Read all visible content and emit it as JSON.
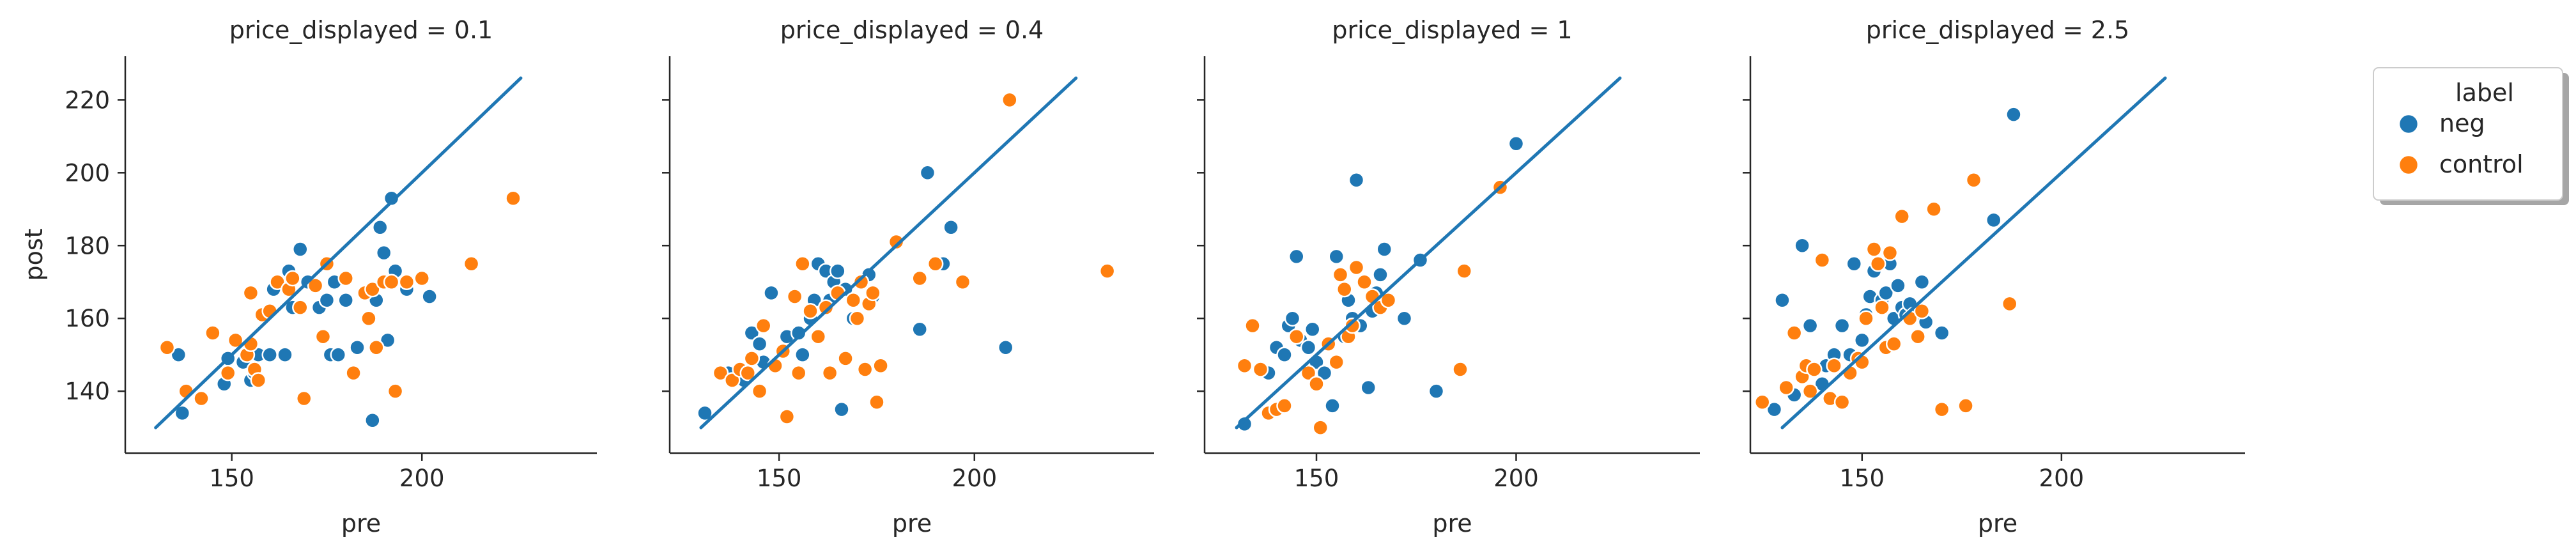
{
  "chart_data": {
    "type": "scatter",
    "xlabel": "pre",
    "ylabel": "post",
    "xlim": [
      122,
      246
    ],
    "ylim": [
      123,
      232
    ],
    "xticks": [
      150,
      200
    ],
    "yticks": [
      140,
      160,
      180,
      200,
      220
    ],
    "reference_line": {
      "x": [
        130,
        226
      ],
      "y": [
        130,
        226
      ]
    },
    "colors": {
      "neg": "#1f77b4",
      "control": "#ff7f0e",
      "line": "#1f77b4"
    },
    "legend": {
      "title": "label",
      "entries": [
        "neg",
        "control"
      ],
      "position": "right"
    },
    "panels": [
      {
        "title": "price_displayed = 0.1",
        "series": [
          {
            "name": "neg",
            "points": [
              [
                136,
                150
              ],
              [
                137,
                134
              ],
              [
                148,
                142
              ],
              [
                149,
                149
              ],
              [
                153,
                148
              ],
              [
                155,
                143
              ],
              [
                156,
                145
              ],
              [
                157,
                150
              ],
              [
                160,
                150
              ],
              [
                161,
                168
              ],
              [
                164,
                150
              ],
              [
                165,
                173
              ],
              [
                166,
                163
              ],
              [
                168,
                179
              ],
              [
                170,
                170
              ],
              [
                173,
                163
              ],
              [
                175,
                165
              ],
              [
                176,
                150
              ],
              [
                177,
                170
              ],
              [
                178,
                150
              ],
              [
                180,
                165
              ],
              [
                183,
                152
              ],
              [
                186,
                167
              ],
              [
                187,
                132
              ],
              [
                188,
                165
              ],
              [
                189,
                185
              ],
              [
                190,
                178
              ],
              [
                191,
                154
              ],
              [
                192,
                193
              ],
              [
                193,
                173
              ],
              [
                196,
                168
              ],
              [
                202,
                166
              ]
            ]
          },
          {
            "name": "control",
            "points": [
              [
                133,
                152
              ],
              [
                138,
                140
              ],
              [
                142,
                138
              ],
              [
                145,
                156
              ],
              [
                149,
                145
              ],
              [
                151,
                154
              ],
              [
                154,
                150
              ],
              [
                155,
                167
              ],
              [
                155,
                153
              ],
              [
                156,
                146
              ],
              [
                157,
                143
              ],
              [
                158,
                161
              ],
              [
                160,
                162
              ],
              [
                162,
                170
              ],
              [
                165,
                168
              ],
              [
                166,
                171
              ],
              [
                168,
                163
              ],
              [
                169,
                138
              ],
              [
                172,
                169
              ],
              [
                174,
                155
              ],
              [
                175,
                175
              ],
              [
                180,
                171
              ],
              [
                182,
                145
              ],
              [
                185,
                167
              ],
              [
                186,
                160
              ],
              [
                187,
                168
              ],
              [
                188,
                152
              ],
              [
                190,
                170
              ],
              [
                192,
                170
              ],
              [
                193,
                140
              ],
              [
                196,
                170
              ],
              [
                200,
                171
              ],
              [
                213,
                175
              ],
              [
                224,
                193
              ]
            ]
          }
        ]
      },
      {
        "title": "price_displayed = 0.4",
        "series": [
          {
            "name": "neg",
            "points": [
              [
                131,
                134
              ],
              [
                137,
                145
              ],
              [
                141,
                143
              ],
              [
                143,
                156
              ],
              [
                145,
                153
              ],
              [
                146,
                148
              ],
              [
                148,
                167
              ],
              [
                152,
                155
              ],
              [
                155,
                156
              ],
              [
                156,
                150
              ],
              [
                158,
                160
              ],
              [
                159,
                165
              ],
              [
                160,
                175
              ],
              [
                162,
                173
              ],
              [
                163,
                165
              ],
              [
                164,
                170
              ],
              [
                165,
                173
              ],
              [
                166,
                135
              ],
              [
                167,
                168
              ],
              [
                169,
                160
              ],
              [
                171,
                170
              ],
              [
                173,
                172
              ],
              [
                174,
                166
              ],
              [
                186,
                157
              ],
              [
                188,
                200
              ],
              [
                192,
                175
              ],
              [
                194,
                185
              ],
              [
                208,
                152
              ]
            ]
          },
          {
            "name": "control",
            "points": [
              [
                135,
                145
              ],
              [
                138,
                143
              ],
              [
                140,
                146
              ],
              [
                142,
                145
              ],
              [
                143,
                149
              ],
              [
                145,
                140
              ],
              [
                146,
                158
              ],
              [
                149,
                147
              ],
              [
                151,
                151
              ],
              [
                152,
                133
              ],
              [
                154,
                166
              ],
              [
                155,
                145
              ],
              [
                156,
                175
              ],
              [
                158,
                162
              ],
              [
                160,
                155
              ],
              [
                162,
                163
              ],
              [
                163,
                145
              ],
              [
                165,
                167
              ],
              [
                167,
                149
              ],
              [
                169,
                165
              ],
              [
                170,
                160
              ],
              [
                171,
                170
              ],
              [
                172,
                146
              ],
              [
                173,
                164
              ],
              [
                174,
                167
              ],
              [
                175,
                137
              ],
              [
                176,
                147
              ],
              [
                180,
                181
              ],
              [
                186,
                171
              ],
              [
                190,
                175
              ],
              [
                197,
                170
              ],
              [
                209,
                220
              ],
              [
                234,
                173
              ]
            ]
          }
        ]
      },
      {
        "title": "price_displayed = 1",
        "series": [
          {
            "name": "neg",
            "points": [
              [
                132,
                131
              ],
              [
                138,
                145
              ],
              [
                140,
                152
              ],
              [
                142,
                150
              ],
              [
                143,
                158
              ],
              [
                144,
                160
              ],
              [
                145,
                177
              ],
              [
                146,
                154
              ],
              [
                148,
                152
              ],
              [
                149,
                157
              ],
              [
                150,
                148
              ],
              [
                152,
                145
              ],
              [
                154,
                136
              ],
              [
                155,
                177
              ],
              [
                157,
                155
              ],
              [
                158,
                165
              ],
              [
                159,
                160
              ],
              [
                160,
                198
              ],
              [
                161,
                158
              ],
              [
                162,
                170
              ],
              [
                163,
                141
              ],
              [
                164,
                162
              ],
              [
                165,
                167
              ],
              [
                166,
                172
              ],
              [
                167,
                179
              ],
              [
                172,
                160
              ],
              [
                176,
                176
              ],
              [
                180,
                140
              ],
              [
                200,
                208
              ]
            ]
          },
          {
            "name": "control",
            "points": [
              [
                132,
                147
              ],
              [
                134,
                158
              ],
              [
                136,
                146
              ],
              [
                138,
                134
              ],
              [
                140,
                135
              ],
              [
                142,
                136
              ],
              [
                145,
                155
              ],
              [
                148,
                145
              ],
              [
                150,
                142
              ],
              [
                151,
                130
              ],
              [
                153,
                153
              ],
              [
                155,
                148
              ],
              [
                156,
                172
              ],
              [
                157,
                168
              ],
              [
                158,
                155
              ],
              [
                159,
                158
              ],
              [
                160,
                174
              ],
              [
                162,
                170
              ],
              [
                164,
                166
              ],
              [
                166,
                163
              ],
              [
                168,
                165
              ],
              [
                186,
                146
              ],
              [
                187,
                173
              ],
              [
                196,
                196
              ]
            ]
          }
        ]
      },
      {
        "title": "price_displayed = 2.5",
        "series": [
          {
            "name": "neg",
            "points": [
              [
                128,
                135
              ],
              [
                130,
                165
              ],
              [
                133,
                139
              ],
              [
                135,
                180
              ],
              [
                137,
                158
              ],
              [
                140,
                142
              ],
              [
                141,
                147
              ],
              [
                143,
                150
              ],
              [
                145,
                158
              ],
              [
                147,
                150
              ],
              [
                148,
                175
              ],
              [
                150,
                154
              ],
              [
                151,
                161
              ],
              [
                152,
                166
              ],
              [
                153,
                173
              ],
              [
                155,
                165
              ],
              [
                156,
                167
              ],
              [
                157,
                175
              ],
              [
                158,
                160
              ],
              [
                159,
                169
              ],
              [
                160,
                163
              ],
              [
                161,
                161
              ],
              [
                162,
                164
              ],
              [
                163,
                161
              ],
              [
                165,
                170
              ],
              [
                166,
                159
              ],
              [
                170,
                156
              ],
              [
                183,
                187
              ],
              [
                188,
                216
              ]
            ]
          },
          {
            "name": "control",
            "points": [
              [
                125,
                137
              ],
              [
                131,
                141
              ],
              [
                133,
                156
              ],
              [
                135,
                144
              ],
              [
                136,
                147
              ],
              [
                137,
                140
              ],
              [
                138,
                146
              ],
              [
                140,
                176
              ],
              [
                142,
                138
              ],
              [
                143,
                147
              ],
              [
                145,
                137
              ],
              [
                147,
                145
              ],
              [
                149,
                149
              ],
              [
                150,
                148
              ],
              [
                151,
                160
              ],
              [
                153,
                179
              ],
              [
                154,
                175
              ],
              [
                155,
                163
              ],
              [
                156,
                152
              ],
              [
                157,
                178
              ],
              [
                158,
                153
              ],
              [
                160,
                188
              ],
              [
                162,
                160
              ],
              [
                164,
                155
              ],
              [
                165,
                162
              ],
              [
                168,
                190
              ],
              [
                170,
                135
              ],
              [
                176,
                136
              ],
              [
                178,
                198
              ],
              [
                187,
                164
              ]
            ]
          }
        ]
      }
    ]
  }
}
